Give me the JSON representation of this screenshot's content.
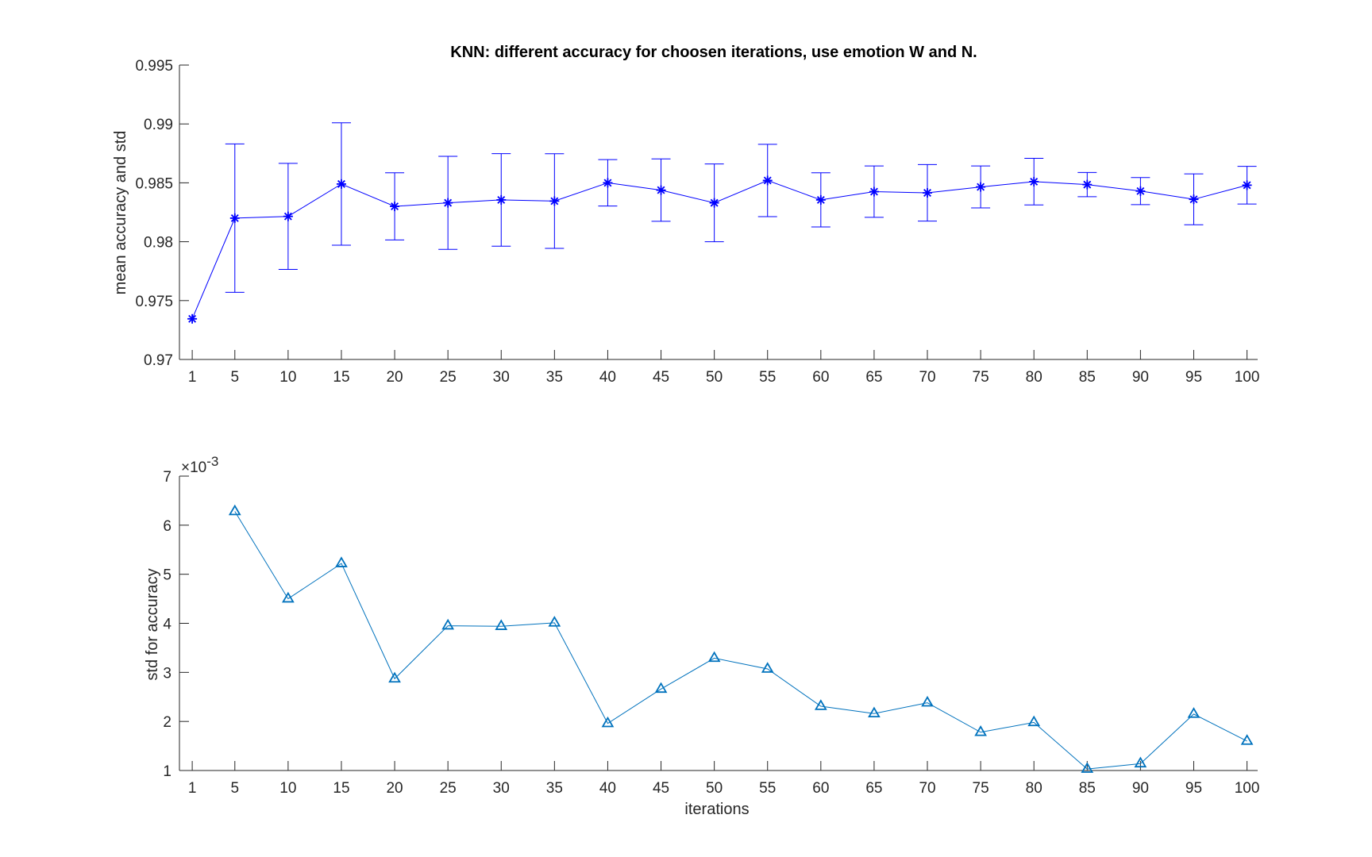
{
  "chart_data": [
    {
      "type": "line",
      "title": "KNN: different accuracy for choosen iterations, use emotion W and N.",
      "xlabel": "",
      "ylabel": "mean accuracy and std",
      "x": [
        1,
        5,
        10,
        15,
        20,
        25,
        30,
        35,
        40,
        45,
        50,
        55,
        60,
        65,
        70,
        75,
        80,
        85,
        90,
        95,
        100
      ],
      "xtick_labels": [
        "1",
        "5",
        "10",
        "15",
        "20",
        "25",
        "30",
        "35",
        "40",
        "45",
        "50",
        "55",
        "60",
        "65",
        "70",
        "75",
        "80",
        "85",
        "90",
        "95",
        "100"
      ],
      "ylim": [
        0.97,
        0.995
      ],
      "yticks": [
        "0.97",
        "0.975",
        "0.98",
        "0.985",
        "0.99",
        "0.995"
      ],
      "grid": false,
      "series": [
        {
          "values": [
            0.97345,
            0.982,
            0.98215,
            0.9849,
            0.983,
            0.9833,
            0.98355,
            0.98345,
            0.985,
            0.98438,
            0.9833,
            0.9852,
            0.98355,
            0.98425,
            0.98415,
            0.98465,
            0.9851,
            0.98485,
            0.9843,
            0.9836,
            0.9848
          ],
          "error": [
            0,
            0.0063,
            0.0045,
            0.0052,
            0.00285,
            0.00395,
            0.00393,
            0.00402,
            0.00197,
            0.00265,
            0.0033,
            0.00307,
            0.0023,
            0.00218,
            0.0024,
            0.00178,
            0.00198,
            0.00103,
            0.00115,
            0.00216,
            0.0016
          ],
          "marker": "asterisk",
          "color": "#0000ff"
        }
      ]
    },
    {
      "type": "line",
      "title": "",
      "xlabel": "iterations",
      "ylabel": "std for accuracy",
      "x": [
        1,
        5,
        10,
        15,
        20,
        25,
        30,
        35,
        40,
        45,
        50,
        55,
        60,
        65,
        70,
        75,
        80,
        85,
        90,
        95,
        100
      ],
      "xtick_labels": [
        "1",
        "5",
        "10",
        "15",
        "20",
        "25",
        "30",
        "35",
        "40",
        "45",
        "50",
        "55",
        "60",
        "65",
        "70",
        "75",
        "80",
        "85",
        "90",
        "95",
        "100"
      ],
      "ylim": [
        1,
        7
      ],
      "yticks": [
        "1",
        "2",
        "3",
        "4",
        "5",
        "6",
        "7"
      ],
      "y_exponent_base": "×10",
      "y_exponent": "-3",
      "grid": false,
      "series": [
        {
          "x": [
            5,
            10,
            15,
            20,
            25,
            30,
            35,
            40,
            45,
            50,
            55,
            60,
            65,
            70,
            75,
            80,
            85,
            90,
            95,
            100
          ],
          "values": [
            6.28,
            4.5,
            5.22,
            2.87,
            3.95,
            3.94,
            4.01,
            1.96,
            2.66,
            3.29,
            3.07,
            2.31,
            2.16,
            2.38,
            1.78,
            1.98,
            1.03,
            1.14,
            2.15,
            1.6
          ],
          "marker": "triangle",
          "color": "#0072bd"
        }
      ]
    }
  ]
}
